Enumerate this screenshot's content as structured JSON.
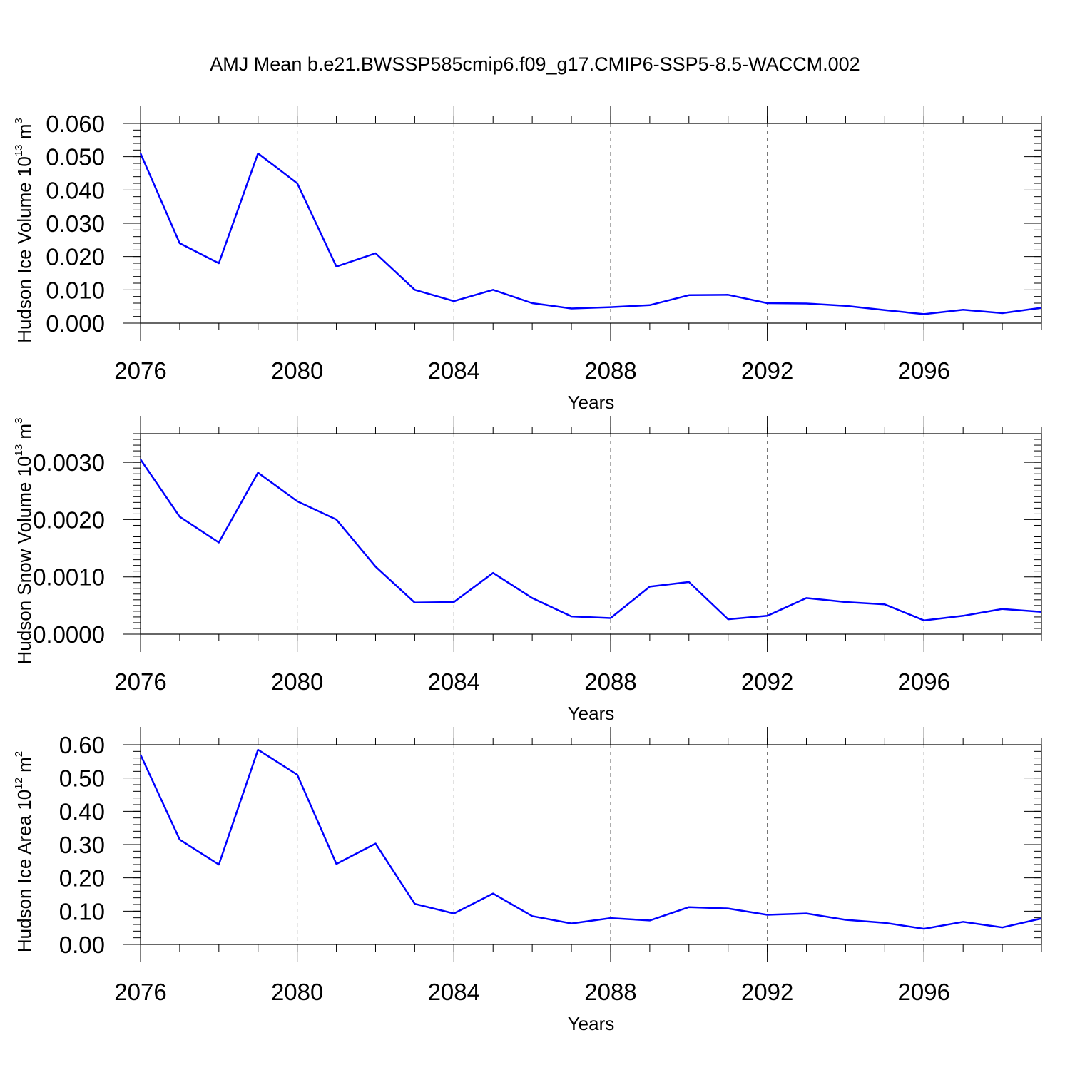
{
  "title": "AMJ Mean b.e21.BWSSP585cmip6.f09_g17.CMIP6-SSP5-8.5-WACCM.002",
  "line_color": "#0000ff",
  "chart_data": [
    {
      "type": "line",
      "x": [
        2076,
        2077,
        2078,
        2079,
        2080,
        2081,
        2082,
        2083,
        2084,
        2085,
        2086,
        2087,
        2088,
        2089,
        2090,
        2091,
        2092,
        2093,
        2094,
        2095,
        2096,
        2097,
        2098,
        2099
      ],
      "y": [
        0.051,
        0.024,
        0.018,
        0.051,
        0.042,
        0.017,
        0.021,
        0.01,
        0.0066,
        0.01,
        0.006,
        0.0044,
        0.0048,
        0.0054,
        0.0084,
        0.0085,
        0.006,
        0.0059,
        0.0052,
        0.0039,
        0.0027,
        0.004,
        0.003,
        0.0046
      ],
      "xlabel": "Years",
      "ylabel": {
        "text": "Hudson Ice Volume 10",
        "exp": "13",
        "unit": " m",
        "unit_exp": "3"
      },
      "xlim": [
        2076,
        2099
      ],
      "ylim": [
        0,
        0.06
      ],
      "xticks": [
        "2076",
        "2080",
        "2084",
        "2088",
        "2092",
        "2096"
      ],
      "yticks": [
        "0.000",
        "0.010",
        "0.020",
        "0.030",
        "0.040",
        "0.050",
        "0.060"
      ],
      "grid": "vertical dashed at major x ticks"
    },
    {
      "type": "line",
      "x": [
        2076,
        2077,
        2078,
        2079,
        2080,
        2081,
        2082,
        2083,
        2084,
        2085,
        2086,
        2087,
        2088,
        2089,
        2090,
        2091,
        2092,
        2093,
        2094,
        2095,
        2096,
        2097,
        2098,
        2099
      ],
      "y": [
        0.00305,
        0.00205,
        0.0016,
        0.00282,
        0.00232,
        0.002,
        0.00118,
        0.00055,
        0.00056,
        0.00107,
        0.00063,
        0.00031,
        0.00028,
        0.00083,
        0.00091,
        0.00026,
        0.00032,
        0.00063,
        0.00056,
        0.00052,
        0.00024,
        0.00032,
        0.00044,
        0.00039
      ],
      "xlabel": "Years",
      "ylabel": {
        "text": "Hudson Snow Volume 10",
        "exp": "13",
        "unit": " m",
        "unit_exp": "3"
      },
      "xlim": [
        2076,
        2099
      ],
      "ylim": [
        0,
        0.0035
      ],
      "xticks": [
        "2076",
        "2080",
        "2084",
        "2088",
        "2092",
        "2096"
      ],
      "yticks": [
        "0.0000",
        "0.0010",
        "0.0020",
        "0.0030"
      ],
      "grid": "vertical dashed at major x ticks"
    },
    {
      "type": "line",
      "x": [
        2076,
        2077,
        2078,
        2079,
        2080,
        2081,
        2082,
        2083,
        2084,
        2085,
        2086,
        2087,
        2088,
        2089,
        2090,
        2091,
        2092,
        2093,
        2094,
        2095,
        2096,
        2097,
        2098,
        2099
      ],
      "y": [
        0.57,
        0.315,
        0.24,
        0.585,
        0.51,
        0.242,
        0.303,
        0.122,
        0.093,
        0.153,
        0.085,
        0.063,
        0.079,
        0.072,
        0.112,
        0.108,
        0.089,
        0.093,
        0.074,
        0.065,
        0.047,
        0.068,
        0.051,
        0.078
      ],
      "xlabel": "Years",
      "ylabel": {
        "text": "Hudson Ice Area 10",
        "exp": "12",
        "unit": " m",
        "unit_exp": "2"
      },
      "xlim": [
        2076,
        2099
      ],
      "ylim": [
        0,
        0.6
      ],
      "xticks": [
        "2076",
        "2080",
        "2084",
        "2088",
        "2092",
        "2096"
      ],
      "yticks": [
        "0.00",
        "0.10",
        "0.20",
        "0.30",
        "0.40",
        "0.50",
        "0.60"
      ],
      "grid": "vertical dashed at major x ticks"
    }
  ]
}
